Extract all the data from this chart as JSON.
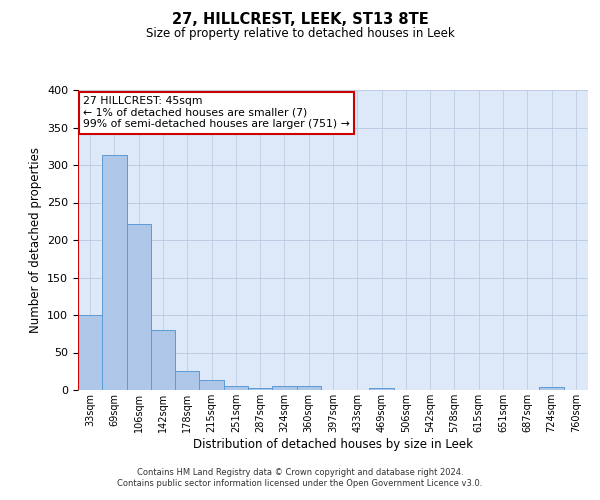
{
  "title": "27, HILLCREST, LEEK, ST13 8TE",
  "subtitle": "Size of property relative to detached houses in Leek",
  "xlabel": "Distribution of detached houses by size in Leek",
  "ylabel": "Number of detached properties",
  "categories": [
    "33sqm",
    "69sqm",
    "106sqm",
    "142sqm",
    "178sqm",
    "215sqm",
    "251sqm",
    "287sqm",
    "324sqm",
    "360sqm",
    "397sqm",
    "433sqm",
    "469sqm",
    "506sqm",
    "542sqm",
    "578sqm",
    "615sqm",
    "651sqm",
    "687sqm",
    "724sqm",
    "760sqm"
  ],
  "values": [
    100,
    313,
    222,
    80,
    26,
    13,
    5,
    3,
    5,
    6,
    0,
    0,
    3,
    0,
    0,
    0,
    0,
    0,
    0,
    4,
    0
  ],
  "bar_color": "#aec6e8",
  "bar_edge_color": "#5b9bd5",
  "background_color": "#dde8f8",
  "ylim": [
    0,
    400
  ],
  "yticks": [
    0,
    50,
    100,
    150,
    200,
    250,
    300,
    350,
    400
  ],
  "marker_color": "#cc0000",
  "annotation_title": "27 HILLCREST: 45sqm",
  "annotation_line1": "← 1% of detached houses are smaller (7)",
  "annotation_line2": "99% of semi-detached houses are larger (751) →",
  "annotation_box_color": "#ffffff",
  "annotation_box_edge_color": "#cc0000",
  "footer_line1": "Contains HM Land Registry data © Crown copyright and database right 2024.",
  "footer_line2": "Contains public sector information licensed under the Open Government Licence v3.0."
}
